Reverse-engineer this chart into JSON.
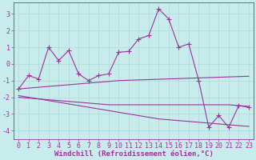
{
  "title": "",
  "xlabel": "Windchill (Refroidissement éolien,°C)",
  "background_color": "#c8ecec",
  "grid_color": "#b0d8d8",
  "line_color": "#993399",
  "x_data": [
    0,
    1,
    2,
    3,
    4,
    5,
    6,
    7,
    8,
    9,
    10,
    11,
    12,
    13,
    14,
    15,
    16,
    17,
    18,
    19,
    20,
    21,
    22,
    23
  ],
  "y_main": [
    -1.5,
    -0.7,
    -0.9,
    1.0,
    0.2,
    0.8,
    -0.6,
    -1.0,
    -0.7,
    -0.6,
    0.7,
    0.75,
    1.5,
    1.7,
    3.3,
    2.7,
    1.0,
    1.2,
    -1.0,
    -3.8,
    -3.1,
    -3.8,
    -2.5,
    -2.6
  ],
  "y_trend1": [
    -1.5,
    -1.45,
    -1.4,
    -1.35,
    -1.3,
    -1.25,
    -1.2,
    -1.15,
    -1.1,
    -1.05,
    -1.0,
    -0.98,
    -0.96,
    -0.94,
    -0.92,
    -0.9,
    -0.88,
    -0.86,
    -0.84,
    -0.82,
    -0.8,
    -0.78,
    -0.76,
    -0.74
  ],
  "y_trend2": [
    -2.0,
    -2.05,
    -2.1,
    -2.15,
    -2.2,
    -2.25,
    -2.3,
    -2.35,
    -2.4,
    -2.45,
    -2.45,
    -2.45,
    -2.45,
    -2.45,
    -2.45,
    -2.45,
    -2.45,
    -2.45,
    -2.45,
    -2.45,
    -2.45,
    -2.45,
    -2.5,
    -2.55
  ],
  "y_trend3": [
    -1.9,
    -2.0,
    -2.1,
    -2.2,
    -2.3,
    -2.4,
    -2.5,
    -2.6,
    -2.7,
    -2.8,
    -2.9,
    -3.0,
    -3.1,
    -3.2,
    -3.3,
    -3.35,
    -3.4,
    -3.45,
    -3.5,
    -3.55,
    -3.6,
    -3.65,
    -3.7,
    -3.75
  ],
  "ylim": [
    -4.5,
    3.7
  ],
  "yticks": [
    -4,
    -3,
    -2,
    -1,
    0,
    1,
    2,
    3
  ],
  "xticks": [
    0,
    1,
    2,
    3,
    4,
    5,
    6,
    7,
    8,
    9,
    10,
    11,
    12,
    13,
    14,
    15,
    16,
    17,
    18,
    19,
    20,
    21,
    22,
    23
  ],
  "markersize": 2.5,
  "linewidth": 0.8,
  "xlabel_fontsize": 6.5,
  "tick_fontsize": 6
}
